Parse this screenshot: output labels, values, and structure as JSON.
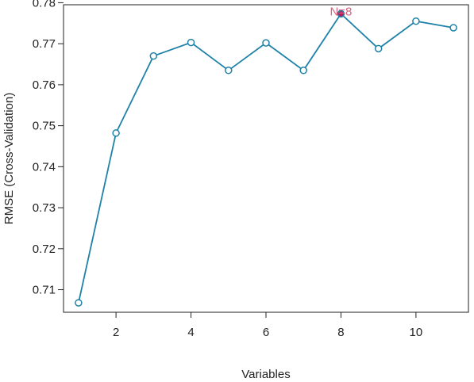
{
  "chart_data": {
    "type": "line",
    "title": "",
    "xlabel": "Variables",
    "ylabel": "RMSE (Cross-Validation)",
    "x": [
      1,
      2,
      3,
      4,
      5,
      6,
      7,
      8,
      9,
      10,
      11
    ],
    "series": [
      {
        "values": [
          0.7068,
          0.7482,
          0.767,
          0.7703,
          0.7635,
          0.7702,
          0.7635,
          0.7773,
          0.7688,
          0.7755,
          0.7739
        ]
      }
    ],
    "xlim": [
      0.6,
      11.4
    ],
    "ylim": [
      0.7045,
      0.7795
    ],
    "xticks": [
      2,
      4,
      6,
      8,
      10
    ],
    "xtick_labels": [
      "2",
      "4",
      "6",
      "8",
      "10"
    ],
    "yticks": [
      0.71,
      0.72,
      0.73,
      0.74,
      0.75,
      0.76,
      0.77,
      0.78
    ],
    "ytick_labels": [
      "0.71",
      "0.72",
      "0.73",
      "0.74",
      "0.75",
      "0.76",
      "0.77",
      "0.78"
    ],
    "grid": false,
    "annotation": {
      "text": "N=8",
      "x": 8,
      "y": 0.7773
    },
    "colors": {
      "line": "#1f82a8",
      "highlight": "#c2185b",
      "annotation": "#d9607e",
      "axis": "#222222"
    }
  }
}
